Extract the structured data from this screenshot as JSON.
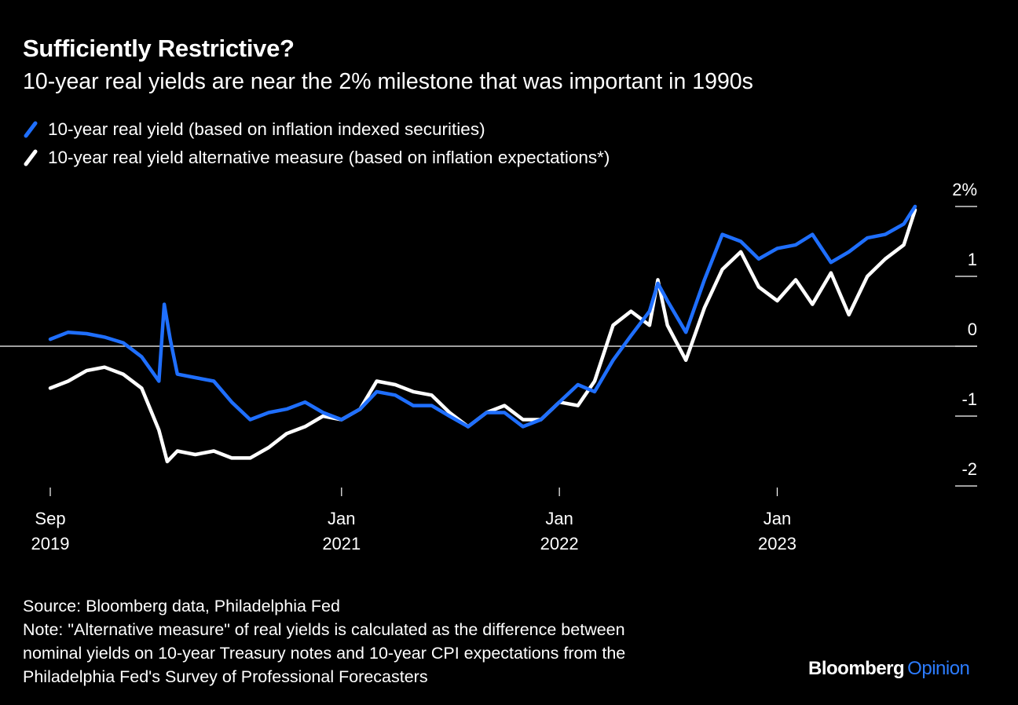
{
  "header": {
    "title": "Sufficiently Restrictive?",
    "subtitle": "10-year real yields are near the 2% milestone that was important in 1990s"
  },
  "footer": {
    "source": "Source: Bloomberg data, Philadelphia Fed",
    "note_line_1": "Note: \"Alternative measure\" of real yields is calculated as the difference between",
    "note_line_2": "nominal yields on 10-year Treasury notes and 10-year CPI expectations from the",
    "note_line_3": "Philadelphia Fed's Survey of Professional Forecasters",
    "brand_bloomberg": "Bloomberg",
    "brand_opinion": "Opinion"
  },
  "colors": {
    "background": "#000000",
    "series_blue": "#1f6fff",
    "series_white": "#ffffff",
    "brand_opinion": "#2c7cff"
  },
  "chart_data": {
    "type": "line",
    "title": "Sufficiently Restrictive?",
    "subtitle": "10-year real yields are near the 2% milestone that was important in 1990s",
    "xlabel": "",
    "ylabel": "",
    "x_range": [
      "2019-09-01",
      "2023-08-20"
    ],
    "ylim": [
      -2,
      2
    ],
    "y_ticks": [
      {
        "value": 2,
        "label": "2%"
      },
      {
        "value": 1,
        "label": "1"
      },
      {
        "value": 0,
        "label": "0"
      },
      {
        "value": -1,
        "label": "-1"
      },
      {
        "value": -2,
        "label": "-2"
      }
    ],
    "x_ticks": [
      {
        "date": "2019-09-01",
        "label_top": "Sep",
        "label_bottom": "2019"
      },
      {
        "date": "2021-01-01",
        "label_top": "Jan",
        "label_bottom": "2021"
      },
      {
        "date": "2022-01-01",
        "label_top": "Jan",
        "label_bottom": "2022"
      },
      {
        "date": "2023-01-01",
        "label_top": "Jan",
        "label_bottom": "2023"
      }
    ],
    "zero_line": true,
    "grid": false,
    "legend_position": "top-left",
    "series": [
      {
        "name": "10-year real yield (based on inflation indexed securities)",
        "color": "#1f6fff",
        "points": [
          [
            "2019-09-01",
            0.1
          ],
          [
            "2019-10-01",
            0.2
          ],
          [
            "2019-11-01",
            0.18
          ],
          [
            "2019-12-01",
            0.13
          ],
          [
            "2020-01-01",
            0.05
          ],
          [
            "2020-02-01",
            -0.15
          ],
          [
            "2020-03-01",
            -0.5
          ],
          [
            "2020-03-10",
            0.6
          ],
          [
            "2020-03-20",
            0.1
          ],
          [
            "2020-04-01",
            -0.4
          ],
          [
            "2020-05-01",
            -0.45
          ],
          [
            "2020-06-01",
            -0.5
          ],
          [
            "2020-07-01",
            -0.8
          ],
          [
            "2020-08-01",
            -1.05
          ],
          [
            "2020-09-01",
            -0.95
          ],
          [
            "2020-10-01",
            -0.9
          ],
          [
            "2020-11-01",
            -0.8
          ],
          [
            "2020-12-01",
            -0.95
          ],
          [
            "2021-01-01",
            -1.05
          ],
          [
            "2021-02-01",
            -0.9
          ],
          [
            "2021-03-01",
            -0.65
          ],
          [
            "2021-04-01",
            -0.7
          ],
          [
            "2021-05-01",
            -0.85
          ],
          [
            "2021-06-01",
            -0.85
          ],
          [
            "2021-07-01",
            -1.0
          ],
          [
            "2021-08-01",
            -1.15
          ],
          [
            "2021-09-01",
            -0.95
          ],
          [
            "2021-10-01",
            -0.95
          ],
          [
            "2021-11-01",
            -1.15
          ],
          [
            "2021-12-01",
            -1.05
          ],
          [
            "2022-01-01",
            -0.8
          ],
          [
            "2022-02-01",
            -0.55
          ],
          [
            "2022-03-01",
            -0.65
          ],
          [
            "2022-04-01",
            -0.2
          ],
          [
            "2022-05-01",
            0.15
          ],
          [
            "2022-06-01",
            0.5
          ],
          [
            "2022-06-15",
            0.9
          ],
          [
            "2022-07-01",
            0.65
          ],
          [
            "2022-08-01",
            0.2
          ],
          [
            "2022-09-01",
            0.95
          ],
          [
            "2022-10-01",
            1.6
          ],
          [
            "2022-11-01",
            1.5
          ],
          [
            "2022-12-01",
            1.25
          ],
          [
            "2023-01-01",
            1.4
          ],
          [
            "2023-02-01",
            1.45
          ],
          [
            "2023-03-01",
            1.6
          ],
          [
            "2023-04-01",
            1.2
          ],
          [
            "2023-05-01",
            1.35
          ],
          [
            "2023-06-01",
            1.55
          ],
          [
            "2023-07-01",
            1.6
          ],
          [
            "2023-08-01",
            1.75
          ],
          [
            "2023-08-20",
            2.0
          ]
        ]
      },
      {
        "name": "10-year real yield alternative measure (based on inflation expectations*)",
        "color": "#ffffff",
        "points": [
          [
            "2019-09-01",
            -0.6
          ],
          [
            "2019-10-01",
            -0.5
          ],
          [
            "2019-11-01",
            -0.35
          ],
          [
            "2019-12-01",
            -0.3
          ],
          [
            "2020-01-01",
            -0.4
          ],
          [
            "2020-02-01",
            -0.6
          ],
          [
            "2020-03-01",
            -1.2
          ],
          [
            "2020-03-15",
            -1.65
          ],
          [
            "2020-04-01",
            -1.5
          ],
          [
            "2020-05-01",
            -1.55
          ],
          [
            "2020-06-01",
            -1.5
          ],
          [
            "2020-07-01",
            -1.6
          ],
          [
            "2020-08-01",
            -1.6
          ],
          [
            "2020-09-01",
            -1.45
          ],
          [
            "2020-10-01",
            -1.25
          ],
          [
            "2020-11-01",
            -1.15
          ],
          [
            "2020-12-01",
            -1.0
          ],
          [
            "2021-01-01",
            -1.05
          ],
          [
            "2021-02-01",
            -0.9
          ],
          [
            "2021-03-01",
            -0.5
          ],
          [
            "2021-04-01",
            -0.55
          ],
          [
            "2021-05-01",
            -0.65
          ],
          [
            "2021-06-01",
            -0.7
          ],
          [
            "2021-07-01",
            -0.95
          ],
          [
            "2021-08-01",
            -1.15
          ],
          [
            "2021-09-01",
            -0.95
          ],
          [
            "2021-10-01",
            -0.85
          ],
          [
            "2021-11-01",
            -1.05
          ],
          [
            "2021-12-01",
            -1.05
          ],
          [
            "2022-01-01",
            -0.8
          ],
          [
            "2022-02-01",
            -0.85
          ],
          [
            "2022-03-01",
            -0.5
          ],
          [
            "2022-04-01",
            0.3
          ],
          [
            "2022-05-01",
            0.5
          ],
          [
            "2022-06-01",
            0.3
          ],
          [
            "2022-06-15",
            0.95
          ],
          [
            "2022-07-01",
            0.3
          ],
          [
            "2022-08-01",
            -0.2
          ],
          [
            "2022-09-01",
            0.55
          ],
          [
            "2022-10-01",
            1.1
          ],
          [
            "2022-11-01",
            1.35
          ],
          [
            "2022-12-01",
            0.85
          ],
          [
            "2023-01-01",
            0.65
          ],
          [
            "2023-02-01",
            0.95
          ],
          [
            "2023-03-01",
            0.6
          ],
          [
            "2023-04-01",
            1.05
          ],
          [
            "2023-05-01",
            0.45
          ],
          [
            "2023-06-01",
            1.0
          ],
          [
            "2023-07-01",
            1.25
          ],
          [
            "2023-08-01",
            1.45
          ],
          [
            "2023-08-20",
            1.95
          ]
        ]
      }
    ]
  }
}
